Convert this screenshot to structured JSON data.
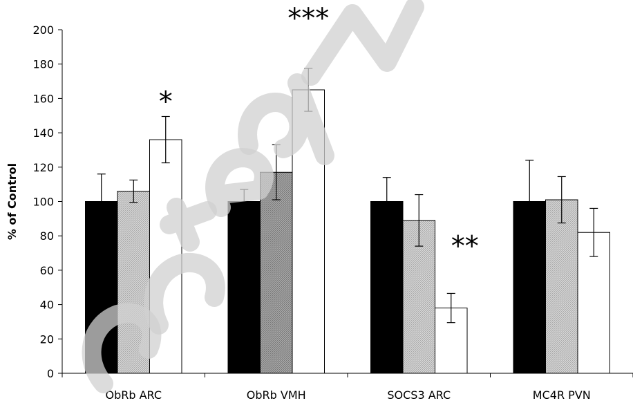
{
  "chart_data": {
    "type": "bar",
    "ylabel": "% of Control",
    "ylim": [
      0,
      200
    ],
    "yticks": [
      0,
      20,
      40,
      60,
      80,
      100,
      120,
      140,
      160,
      180,
      200
    ],
    "categories": [
      "ObRb ARC",
      "ObRb VMH",
      "SOCS3 ARC",
      "MC4R PVN"
    ],
    "series": [
      {
        "fill": "solid-black",
        "color": "#000000",
        "values": [
          100,
          100,
          100,
          100
        ],
        "errors": [
          16,
          7,
          14,
          24
        ]
      },
      {
        "fill": "gray-hatched",
        "color": "#9a9a9a",
        "values": [
          106,
          117,
          89,
          101
        ],
        "errors": [
          6.5,
          16,
          15,
          13.5
        ]
      },
      {
        "fill": "white",
        "color": "#ffffff",
        "values": [
          136,
          165,
          38,
          82
        ],
        "errors": [
          13.5,
          12.5,
          8.5,
          14
        ]
      }
    ],
    "annotations": [
      {
        "text": "*",
        "category": "ObRb ARC",
        "series_index": 2
      },
      {
        "text": "***",
        "category": "ObRb VMH",
        "series_index": 2
      },
      {
        "text": "**",
        "category": "SOCS3 ARC",
        "series_index": 2
      }
    ],
    "watermark": "Accepted Manuscript",
    "grid": false,
    "legend": "none"
  }
}
